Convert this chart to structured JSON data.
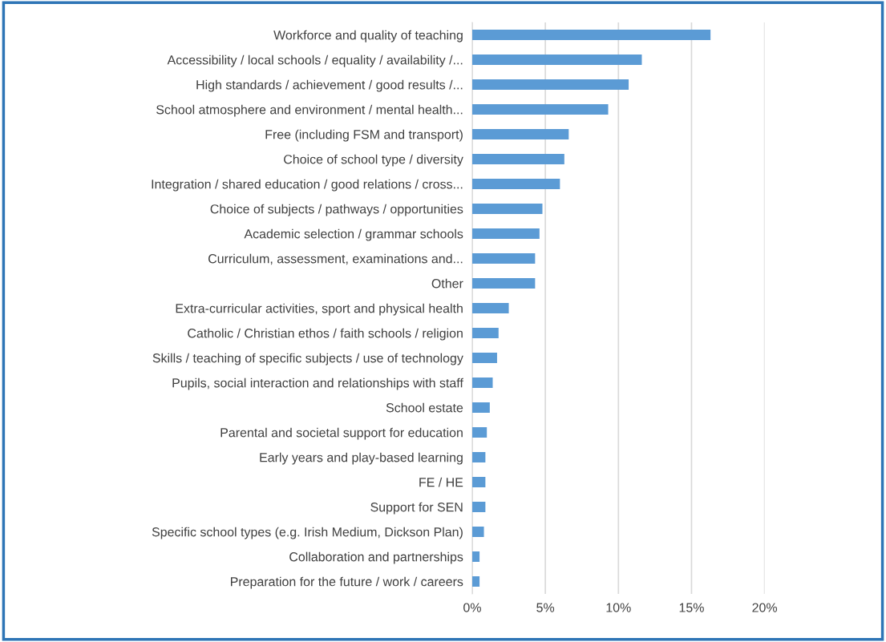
{
  "chart_data": {
    "type": "bar",
    "orientation": "horizontal",
    "categories": [
      "Workforce and quality of teaching",
      "Accessibility / local schools / equality / availability /...",
      "High standards / achievement / good results /...",
      "School atmosphere and environment / mental health...",
      "Free (including FSM and transport)",
      "Choice of school type / diversity",
      "Integration / shared education / good relations / cross...",
      "Choice of subjects / pathways / opportunities",
      "Academic selection / grammar schools",
      "Curriculum, assessment, examinations and...",
      "Other",
      "Extra-curricular activities, sport and physical health",
      "Catholic / Christian ethos / faith schools / religion",
      "Skills / teaching of specific subjects / use of technology",
      "Pupils, social interaction and relationships with staff",
      "School estate",
      "Parental and societal support for education",
      "Early years and play-based learning",
      "FE / HE",
      "Support for SEN",
      "Specific school types (e.g. Irish Medium, Dickson Plan)",
      "Collaboration and partnerships",
      "Preparation for the future / work / careers"
    ],
    "values": [
      16.3,
      11.6,
      10.7,
      9.3,
      6.6,
      6.3,
      6.0,
      4.8,
      4.6,
      4.3,
      4.3,
      2.5,
      1.8,
      1.7,
      1.4,
      1.2,
      1.0,
      0.9,
      0.9,
      0.9,
      0.8,
      0.5,
      0.5
    ],
    "color": "#5b9bd5",
    "xlim": [
      0,
      20
    ],
    "xticks": [
      {
        "value": 0,
        "label": "0%"
      },
      {
        "value": 5,
        "label": "5%"
      },
      {
        "value": 10,
        "label": "10%"
      },
      {
        "value": 15,
        "label": "15%"
      },
      {
        "value": 20,
        "label": "20%"
      }
    ],
    "grid": "x"
  }
}
